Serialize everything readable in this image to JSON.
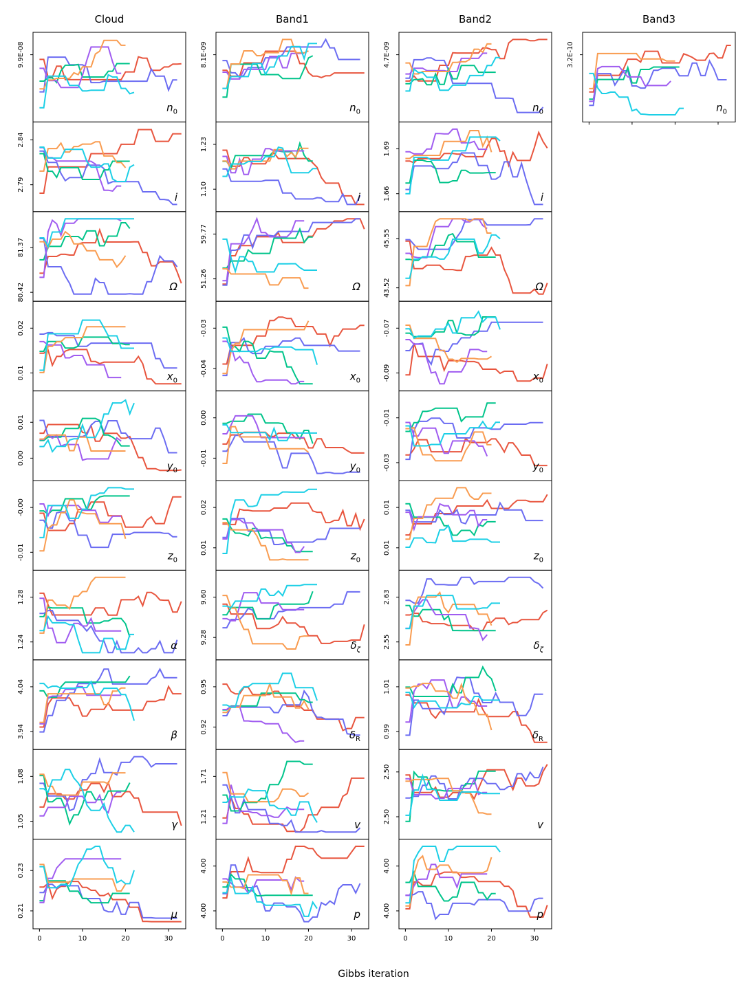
{
  "chart_data": {
    "type": "line",
    "xlabel": "Gibbs iteration",
    "x_ticks": [
      0,
      10,
      20,
      30
    ],
    "x_range": [
      -1.5,
      34
    ],
    "series_colors": [
      "#e8553e",
      "#6b6cf2",
      "#00c48a",
      "#a05cf0",
      "#f99c50",
      "#1ccfe6"
    ],
    "columns": [
      {
        "title": "Cloud",
        "panels": [
          {
            "param": "n0",
            "label": "n",
            "sub": "0",
            "yticks": [
              "9.9E-08"
            ],
            "ylim": [
              0,
              1
            ],
            "tick_pos": [
              0.75
            ]
          },
          {
            "param": "i",
            "label": "i",
            "sub": "",
            "yticks": [
              "2.84",
              "2.79"
            ],
            "ylim": [
              0,
              1
            ],
            "tick_pos": [
              0.8,
              0.3
            ]
          },
          {
            "param": "Omega",
            "label": "Ω",
            "sub": "",
            "yticks": [
              "81.37",
              "80.42"
            ],
            "ylim": [
              0,
              1
            ],
            "tick_pos": [
              0.6,
              0.1
            ]
          },
          {
            "param": "x0",
            "label": "x",
            "sub": "0",
            "yticks": [
              "0.02",
              "0.01"
            ],
            "ylim": [
              0,
              1
            ],
            "tick_pos": [
              0.7,
              0.2
            ]
          },
          {
            "param": "y0",
            "label": "y",
            "sub": "0",
            "yticks": [
              "0.01",
              "0.00"
            ],
            "ylim": [
              0,
              1
            ],
            "tick_pos": [
              0.65,
              0.25
            ]
          },
          {
            "param": "z0",
            "label": "z",
            "sub": "0",
            "yticks": [
              "-0.00",
              "-0.01"
            ],
            "ylim": [
              0,
              1
            ],
            "tick_pos": [
              0.7,
              0.2
            ]
          },
          {
            "param": "alpha",
            "label": "α",
            "sub": "",
            "yticks": [
              "1.28",
              "1.24"
            ],
            "ylim": [
              0,
              1
            ],
            "tick_pos": [
              0.7,
              0.2
            ]
          },
          {
            "param": "beta",
            "label": "β",
            "sub": "",
            "yticks": [
              "4.04",
              "3.94"
            ],
            "ylim": [
              0,
              1
            ],
            "tick_pos": [
              0.7,
              0.2
            ]
          },
          {
            "param": "gamma",
            "label": "γ",
            "sub": "",
            "yticks": [
              "1.08",
              "1.05"
            ],
            "ylim": [
              0,
              1
            ],
            "tick_pos": [
              0.7,
              0.2
            ]
          },
          {
            "param": "mu",
            "label": "μ",
            "sub": "",
            "yticks": [
              "0.23",
              "0.21"
            ],
            "ylim": [
              0,
              1
            ],
            "tick_pos": [
              0.65,
              0.2
            ]
          }
        ]
      },
      {
        "title": "Band1",
        "panels": [
          {
            "param": "n0",
            "label": "n",
            "sub": "0",
            "yticks": [
              "8.1E-09"
            ],
            "ylim": [
              0,
              1
            ],
            "tick_pos": [
              0.75
            ]
          },
          {
            "param": "i",
            "label": "i",
            "sub": "",
            "yticks": [
              "1.23",
              "1.10"
            ],
            "ylim": [
              0,
              1
            ],
            "tick_pos": [
              0.75,
              0.25
            ]
          },
          {
            "param": "Omega",
            "label": "Ω",
            "sub": "",
            "yticks": [
              "59.77",
              "51.26"
            ],
            "ylim": [
              0,
              1
            ],
            "tick_pos": [
              0.75,
              0.25
            ]
          },
          {
            "param": "x0",
            "label": "x",
            "sub": "0",
            "yticks": [
              "-0.03",
              "-0.04"
            ],
            "ylim": [
              0,
              1
            ],
            "tick_pos": [
              0.7,
              0.25
            ]
          },
          {
            "param": "y0",
            "label": "y",
            "sub": "0",
            "yticks": [
              "0.00",
              "-0.01"
            ],
            "ylim": [
              0,
              1
            ],
            "tick_pos": [
              0.7,
              0.25
            ]
          },
          {
            "param": "z0",
            "label": "z",
            "sub": "0",
            "yticks": [
              "0.02",
              "0.01"
            ],
            "ylim": [
              0,
              1
            ],
            "tick_pos": [
              0.7,
              0.25
            ]
          },
          {
            "param": "delta_zeta",
            "label": "δ",
            "sub": "ζ",
            "yticks": [
              "9.60",
              "9.28"
            ],
            "ylim": [
              0,
              1
            ],
            "tick_pos": [
              0.7,
              0.25
            ]
          },
          {
            "param": "delta_R",
            "label": "δ",
            "sub": "R",
            "yticks": [
              "0.95",
              "0.92"
            ],
            "ylim": [
              0,
              1
            ],
            "tick_pos": [
              0.7,
              0.25
            ]
          },
          {
            "param": "v",
            "label": "v",
            "sub": "",
            "yticks": [
              "1.71",
              "1.21"
            ],
            "ylim": [
              0,
              1
            ],
            "tick_pos": [
              0.7,
              0.25
            ]
          },
          {
            "param": "p",
            "label": "p",
            "sub": "",
            "yticks": [
              "4.00",
              "4.00"
            ],
            "ylim": [
              0,
              1
            ],
            "tick_pos": [
              0.7,
              0.2
            ]
          }
        ]
      },
      {
        "title": "Band2",
        "panels": [
          {
            "param": "n0",
            "label": "n",
            "sub": "0",
            "yticks": [
              "4.7E-09"
            ],
            "ylim": [
              0,
              1
            ],
            "tick_pos": [
              0.75
            ]
          },
          {
            "param": "i",
            "label": "i",
            "sub": "",
            "yticks": [
              "1.69",
              "1.66"
            ],
            "ylim": [
              0,
              1
            ],
            "tick_pos": [
              0.7,
              0.2
            ]
          },
          {
            "param": "Omega",
            "label": "Ω",
            "sub": "",
            "yticks": [
              "45.55",
              "43.52"
            ],
            "ylim": [
              0,
              1
            ],
            "tick_pos": [
              0.7,
              0.15
            ]
          },
          {
            "param": "x0",
            "label": "x",
            "sub": "0",
            "yticks": [
              "-0.07",
              "-0.09"
            ],
            "ylim": [
              0,
              1
            ],
            "tick_pos": [
              0.7,
              0.2
            ]
          },
          {
            "param": "y0",
            "label": "y",
            "sub": "0",
            "yticks": [
              "-0.01",
              "-0.03"
            ],
            "ylim": [
              0,
              1
            ],
            "tick_pos": [
              0.7,
              0.2
            ]
          },
          {
            "param": "z0",
            "label": "z",
            "sub": "0",
            "yticks": [
              "0.01",
              "0.01"
            ],
            "ylim": [
              0,
              1
            ],
            "tick_pos": [
              0.7,
              0.25
            ]
          },
          {
            "param": "delta_zeta",
            "label": "δ",
            "sub": "ζ",
            "yticks": [
              "2.63",
              "2.55"
            ],
            "ylim": [
              0,
              1
            ],
            "tick_pos": [
              0.7,
              0.2
            ]
          },
          {
            "param": "delta_R",
            "label": "δ",
            "sub": "R",
            "yticks": [
              "1.01",
              "0.99"
            ],
            "ylim": [
              0,
              1
            ],
            "tick_pos": [
              0.7,
              0.2
            ]
          },
          {
            "param": "v",
            "label": "v",
            "sub": "",
            "yticks": [
              "2.50",
              "2.50"
            ],
            "ylim": [
              0,
              1
            ],
            "tick_pos": [
              0.75,
              0.25
            ]
          },
          {
            "param": "p",
            "label": "p",
            "sub": "",
            "yticks": [
              "4.00",
              "4.00"
            ],
            "ylim": [
              0,
              1
            ],
            "tick_pos": [
              0.7,
              0.2
            ]
          }
        ]
      },
      {
        "title": "Band3",
        "panels": [
          {
            "param": "n0",
            "label": "n",
            "sub": "0",
            "yticks": [
              "3.2E-10"
            ],
            "ylim": [
              0,
              1
            ],
            "tick_pos": [
              0.75
            ]
          }
        ]
      }
    ]
  }
}
